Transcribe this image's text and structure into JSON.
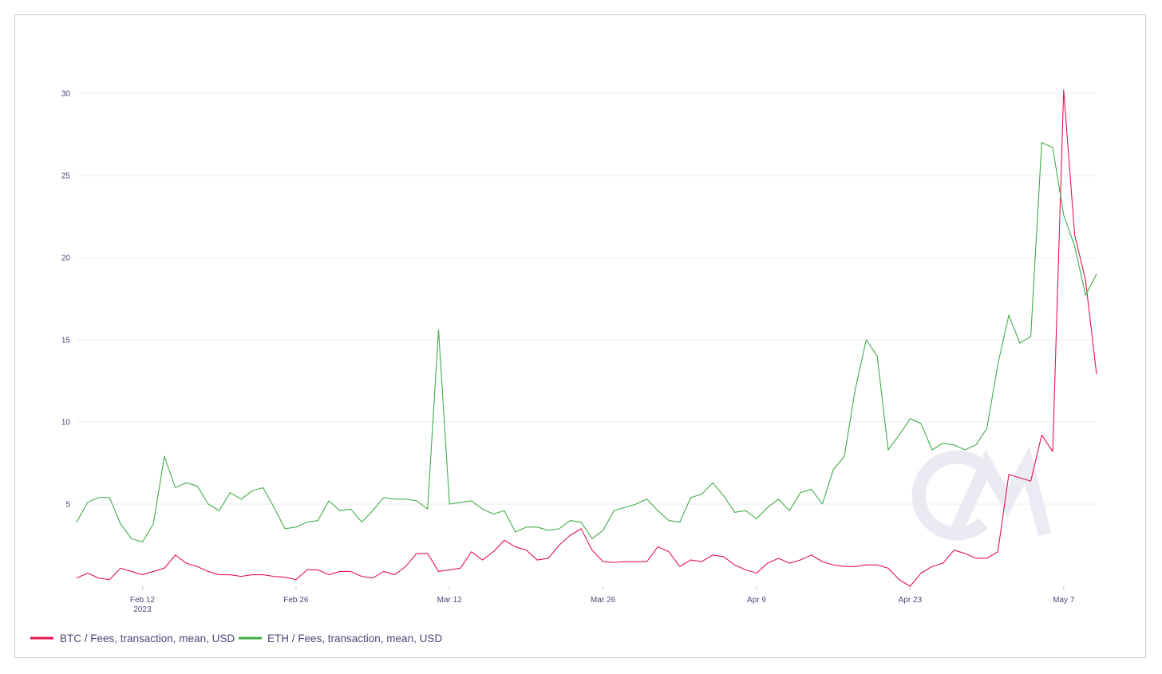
{
  "chart_data": {
    "type": "line",
    "watermark": "CM",
    "x_ticks": [
      {
        "date": "2023-02-12",
        "label": "Feb 12",
        "sublabel": "2023"
      },
      {
        "date": "2023-02-26",
        "label": "Feb 26",
        "sublabel": ""
      },
      {
        "date": "2023-03-12",
        "label": "Mar 12",
        "sublabel": ""
      },
      {
        "date": "2023-03-26",
        "label": "Mar 26",
        "sublabel": ""
      },
      {
        "date": "2023-04-09",
        "label": "Apr 9",
        "sublabel": ""
      },
      {
        "date": "2023-04-23",
        "label": "Apr 23",
        "sublabel": ""
      },
      {
        "date": "2023-05-07",
        "label": "May 7",
        "sublabel": ""
      }
    ],
    "x_range": [
      "2023-02-06",
      "2023-05-10"
    ],
    "y_ticks": [
      5,
      10,
      15,
      20,
      25,
      30
    ],
    "ylim": [
      0,
      31.5
    ],
    "grid": true,
    "legend_position": "bottom-left",
    "series": [
      {
        "name": "BTC / Fees, transaction, mean, USD",
        "color": "#e5134e",
        "dates": [
          "2023-02-06",
          "2023-02-07",
          "2023-02-08",
          "2023-02-09",
          "2023-02-10",
          "2023-02-11",
          "2023-02-12",
          "2023-02-13",
          "2023-02-14",
          "2023-02-15",
          "2023-02-16",
          "2023-02-17",
          "2023-02-18",
          "2023-02-19",
          "2023-02-20",
          "2023-02-21",
          "2023-02-22",
          "2023-02-23",
          "2023-02-24",
          "2023-02-25",
          "2023-02-26",
          "2023-02-27",
          "2023-02-28",
          "2023-03-01",
          "2023-03-02",
          "2023-03-03",
          "2023-03-04",
          "2023-03-05",
          "2023-03-06",
          "2023-03-07",
          "2023-03-08",
          "2023-03-09",
          "2023-03-10",
          "2023-03-11",
          "2023-03-12",
          "2023-03-13",
          "2023-03-14",
          "2023-03-15",
          "2023-03-16",
          "2023-03-17",
          "2023-03-18",
          "2023-03-19",
          "2023-03-20",
          "2023-03-21",
          "2023-03-22",
          "2023-03-23",
          "2023-03-24",
          "2023-03-25",
          "2023-03-26",
          "2023-03-27",
          "2023-03-28",
          "2023-03-29",
          "2023-03-30",
          "2023-03-31",
          "2023-04-01",
          "2023-04-02",
          "2023-04-03",
          "2023-04-04",
          "2023-04-05",
          "2023-04-06",
          "2023-04-07",
          "2023-04-08",
          "2023-04-09",
          "2023-04-10",
          "2023-04-11",
          "2023-04-12",
          "2023-04-13",
          "2023-04-14",
          "2023-04-15",
          "2023-04-16",
          "2023-04-17",
          "2023-04-18",
          "2023-04-19",
          "2023-04-20",
          "2023-04-21",
          "2023-04-22",
          "2023-04-23",
          "2023-04-24",
          "2023-04-25",
          "2023-04-26",
          "2023-04-27",
          "2023-04-28",
          "2023-04-29",
          "2023-04-30",
          "2023-05-01",
          "2023-05-02",
          "2023-05-03",
          "2023-05-04",
          "2023-05-05",
          "2023-05-06",
          "2023-05-07",
          "2023-05-08",
          "2023-05-09",
          "2023-05-10"
        ],
        "values": [
          0.5,
          0.8,
          0.5,
          0.4,
          1.1,
          0.9,
          0.7,
          0.9,
          1.1,
          1.9,
          1.4,
          1.2,
          0.9,
          0.7,
          0.7,
          0.6,
          0.7,
          0.7,
          0.6,
          0.55,
          0.4,
          1.0,
          1.0,
          0.7,
          0.9,
          0.9,
          0.6,
          0.5,
          0.9,
          0.7,
          1.2,
          2.0,
          2.0,
          0.9,
          1.0,
          1.1,
          2.1,
          1.6,
          2.1,
          2.8,
          2.4,
          2.2,
          1.6,
          1.7,
          2.5,
          3.1,
          3.5,
          2.2,
          1.5,
          1.45,
          1.5,
          1.5,
          1.5,
          2.4,
          2.1,
          1.2,
          1.6,
          1.5,
          1.9,
          1.8,
          1.3,
          1.0,
          0.8,
          1.4,
          1.7,
          1.4,
          1.6,
          1.9,
          1.5,
          1.3,
          1.2,
          1.2,
          1.3,
          1.3,
          1.1,
          0.4,
          0.0,
          0.8,
          1.2,
          1.4,
          2.2,
          2.0,
          1.7,
          1.7,
          2.1,
          6.8,
          6.6,
          6.4,
          9.2,
          8.2,
          30.2,
          21.4,
          18.6,
          12.9
        ]
      },
      {
        "name": "ETH / Fees, transaction, mean, USD",
        "color": "#3fae49",
        "dates": [
          "2023-02-06",
          "2023-02-07",
          "2023-02-08",
          "2023-02-09",
          "2023-02-10",
          "2023-02-11",
          "2023-02-12",
          "2023-02-13",
          "2023-02-14",
          "2023-02-15",
          "2023-02-16",
          "2023-02-17",
          "2023-02-18",
          "2023-02-19",
          "2023-02-20",
          "2023-02-21",
          "2023-02-22",
          "2023-02-23",
          "2023-02-24",
          "2023-02-25",
          "2023-02-26",
          "2023-02-27",
          "2023-02-28",
          "2023-03-01",
          "2023-03-02",
          "2023-03-03",
          "2023-03-04",
          "2023-03-05",
          "2023-03-06",
          "2023-03-07",
          "2023-03-08",
          "2023-03-09",
          "2023-03-10",
          "2023-03-11",
          "2023-03-12",
          "2023-03-13",
          "2023-03-14",
          "2023-03-15",
          "2023-03-16",
          "2023-03-17",
          "2023-03-18",
          "2023-03-19",
          "2023-03-20",
          "2023-03-21",
          "2023-03-22",
          "2023-03-23",
          "2023-03-24",
          "2023-03-25",
          "2023-03-26",
          "2023-03-27",
          "2023-03-28",
          "2023-03-29",
          "2023-03-30",
          "2023-03-31",
          "2023-04-01",
          "2023-04-02",
          "2023-04-03",
          "2023-04-04",
          "2023-04-05",
          "2023-04-06",
          "2023-04-07",
          "2023-04-08",
          "2023-04-09",
          "2023-04-10",
          "2023-04-11",
          "2023-04-12",
          "2023-04-13",
          "2023-04-14",
          "2023-04-15",
          "2023-04-16",
          "2023-04-17",
          "2023-04-18",
          "2023-04-19",
          "2023-04-20",
          "2023-04-21",
          "2023-04-22",
          "2023-04-23",
          "2023-04-24",
          "2023-04-25",
          "2023-04-26",
          "2023-04-27",
          "2023-04-28",
          "2023-04-29",
          "2023-04-30",
          "2023-05-01",
          "2023-05-02",
          "2023-05-03",
          "2023-05-04",
          "2023-05-05",
          "2023-05-06",
          "2023-05-07",
          "2023-05-08",
          "2023-05-09",
          "2023-05-10"
        ],
        "values": [
          3.9,
          5.1,
          5.4,
          5.4,
          3.8,
          2.9,
          2.7,
          3.8,
          7.9,
          6.0,
          6.3,
          6.1,
          5.0,
          4.6,
          5.7,
          5.3,
          5.8,
          6.0,
          4.8,
          3.5,
          3.6,
          3.9,
          4.0,
          5.2,
          4.6,
          4.7,
          3.9,
          4.6,
          5.4,
          5.3,
          5.3,
          5.2,
          4.7,
          15.6,
          5.0,
          5.1,
          5.2,
          4.7,
          4.4,
          4.6,
          3.3,
          3.6,
          3.6,
          3.4,
          3.5,
          4.0,
          3.9,
          2.9,
          3.4,
          4.6,
          4.8,
          5.0,
          5.3,
          4.6,
          4.0,
          3.9,
          5.4,
          5.6,
          6.3,
          5.5,
          4.5,
          4.6,
          4.1,
          4.8,
          5.3,
          4.6,
          5.7,
          5.9,
          5.0,
          7.1,
          7.9,
          12.0,
          15.0,
          14.0,
          8.3,
          9.2,
          10.2,
          9.9,
          8.3,
          8.7,
          8.6,
          8.3,
          8.6,
          9.6,
          13.5,
          16.5,
          14.8,
          15.2,
          27.0,
          26.7,
          22.6,
          20.7,
          17.7,
          19.0
        ]
      }
    ]
  }
}
